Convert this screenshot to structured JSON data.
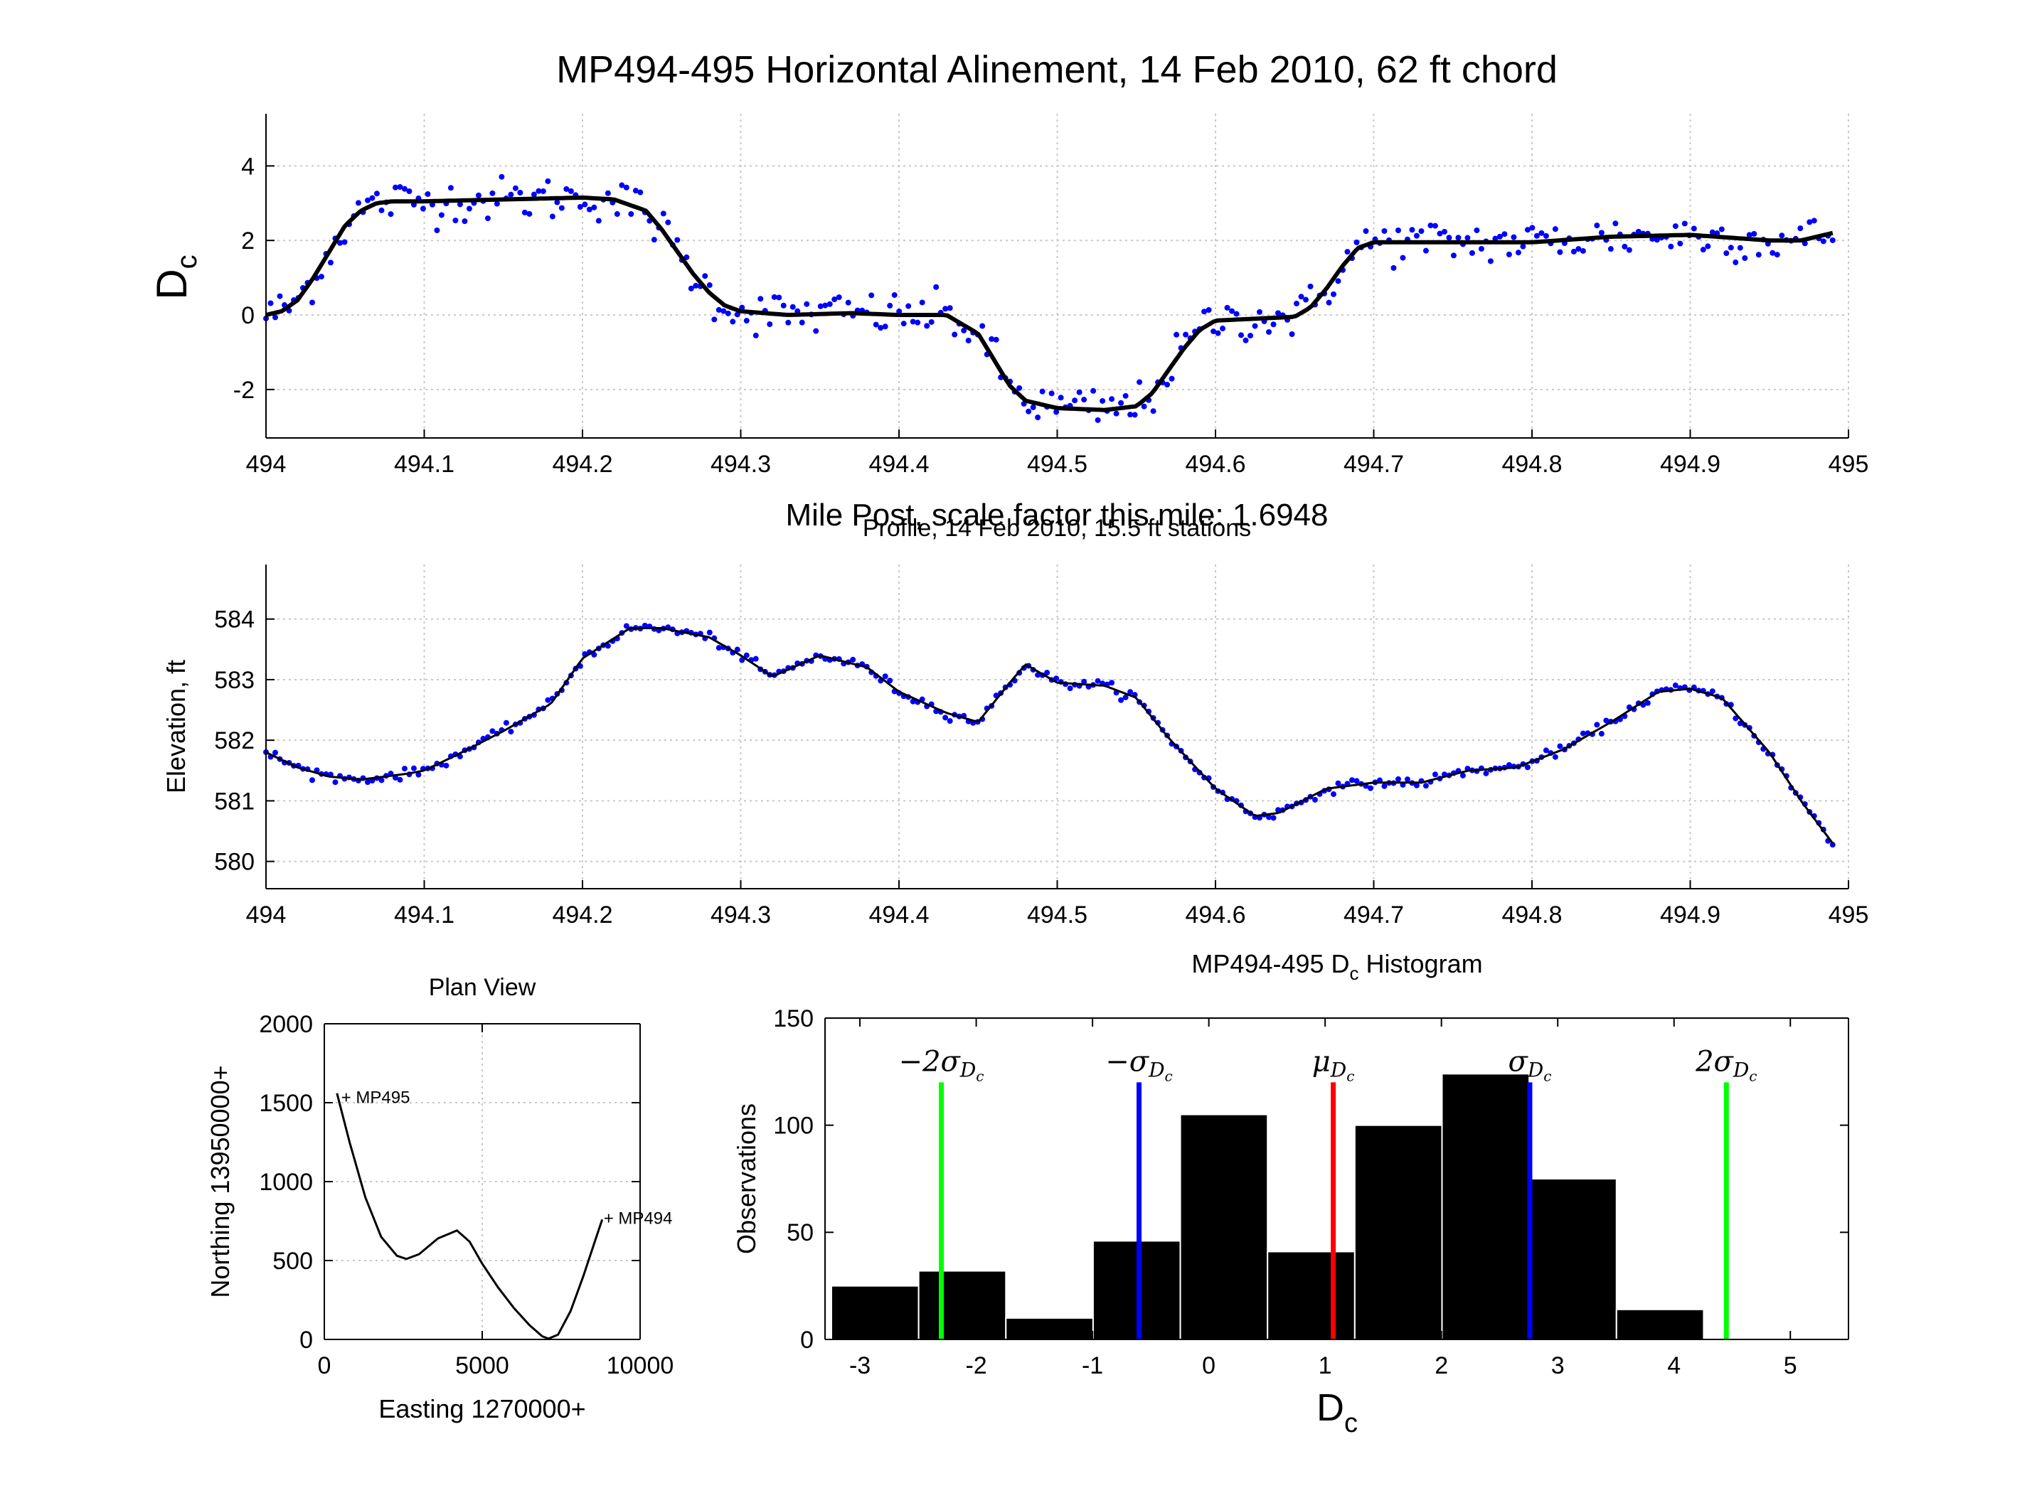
{
  "chart_data": [
    {
      "type": "scatter",
      "title": "MP494-495 Horizontal Alinement, 14 Feb 2010, 62 ft chord",
      "xlabel": "Mile Post, scale factor this mile: 1.6948",
      "ylabel": "D",
      "ylabel_sub": "c",
      "xlim": [
        494,
        495
      ],
      "ylim": [
        -3.3,
        5.4
      ],
      "xticks": [
        "494",
        "494.1",
        "494.2",
        "494.3",
        "494.4",
        "494.5",
        "494.6",
        "494.7",
        "494.8",
        "494.9",
        "495"
      ],
      "yticks": [
        "-2",
        "0",
        "2",
        "4"
      ],
      "grid": true,
      "colors": {
        "points": "#0000ff",
        "line": "#000000"
      },
      "smoothed": {
        "x": [
          494.0,
          494.01,
          494.02,
          494.03,
          494.04,
          494.05,
          494.06,
          494.07,
          494.08,
          494.1,
          494.15,
          494.2,
          494.22,
          494.24,
          494.25,
          494.26,
          494.27,
          494.28,
          494.29,
          494.3,
          494.33,
          494.37,
          494.4,
          494.43,
          494.45,
          494.46,
          494.47,
          494.48,
          494.5,
          494.53,
          494.55,
          494.56,
          494.57,
          494.58,
          494.59,
          494.6,
          494.65,
          494.66,
          494.67,
          494.68,
          494.69,
          494.7,
          494.75,
          494.8,
          494.85,
          494.9,
          494.95,
          494.97,
          494.99
        ],
        "y": [
          0.0,
          0.1,
          0.4,
          1.0,
          1.7,
          2.4,
          2.8,
          3.0,
          3.05,
          3.05,
          3.1,
          3.15,
          3.1,
          2.8,
          2.3,
          1.7,
          1.1,
          0.6,
          0.25,
          0.1,
          0.0,
          0.05,
          0.0,
          0.0,
          -0.5,
          -1.2,
          -1.9,
          -2.3,
          -2.5,
          -2.55,
          -2.45,
          -2.1,
          -1.5,
          -0.9,
          -0.4,
          -0.15,
          -0.05,
          0.2,
          0.7,
          1.3,
          1.8,
          1.95,
          1.95,
          1.95,
          2.1,
          2.15,
          2.0,
          2.0,
          2.2
        ]
      },
      "scatter_noise": 0.3,
      "point_count": 340
    },
    {
      "type": "scatter",
      "title": "Profile, 14 Feb 2010, 15.5 ft stations",
      "xlabel": "",
      "ylabel": "Elevation, ft",
      "xlim": [
        494,
        495
      ],
      "ylim": [
        579.55,
        584.9
      ],
      "xticks": [
        "494",
        "494.1",
        "494.2",
        "494.3",
        "494.4",
        "494.5",
        "494.6",
        "494.7",
        "494.8",
        "494.9",
        "495"
      ],
      "yticks": [
        "580",
        "581",
        "582",
        "583",
        "584"
      ],
      "grid": true,
      "colors": {
        "points": "#0000ff",
        "line": "#000000"
      },
      "profile": {
        "x": [
          494.0,
          494.02,
          494.04,
          494.06,
          494.09,
          494.1,
          494.12,
          494.15,
          494.18,
          494.2,
          494.23,
          494.25,
          494.28,
          494.3,
          494.32,
          494.35,
          494.38,
          494.4,
          494.43,
          494.45,
          494.47,
          494.48,
          494.5,
          494.53,
          494.55,
          494.57,
          494.6,
          494.625,
          494.64,
          494.67,
          494.7,
          494.73,
          494.76,
          494.79,
          494.82,
          494.85,
          494.88,
          494.9,
          494.92,
          494.95,
          494.97,
          494.99
        ],
        "y": [
          581.8,
          581.55,
          581.4,
          581.35,
          581.45,
          581.5,
          581.75,
          582.15,
          582.6,
          583.35,
          583.85,
          583.85,
          583.7,
          583.4,
          583.05,
          583.4,
          583.2,
          582.8,
          582.45,
          582.3,
          582.95,
          583.25,
          582.95,
          582.9,
          582.7,
          582.05,
          581.2,
          580.75,
          580.8,
          581.2,
          581.3,
          581.3,
          581.5,
          581.55,
          581.85,
          582.3,
          582.8,
          582.85,
          582.7,
          581.8,
          581.0,
          580.3
        ]
      },
      "scatter_noise": 0.04,
      "point_count": 340
    },
    {
      "type": "line",
      "title": "Plan View",
      "xlabel": "Easting 1270000+",
      "ylabel": "Northing 13950000+",
      "xlim": [
        0,
        10000
      ],
      "ylim": [
        0,
        2000
      ],
      "xticks": [
        "0",
        "5000",
        "10000"
      ],
      "yticks": [
        "0",
        "500",
        "1000",
        "1500",
        "2000"
      ],
      "grid": true,
      "annotations": [
        "MP495",
        "MP494"
      ],
      "track": {
        "x": [
          400,
          800,
          1300,
          1800,
          2300,
          2600,
          3000,
          3600,
          4200,
          4600,
          5000,
          5500,
          6000,
          6500,
          6900,
          7100,
          7400,
          7800,
          8200,
          8600,
          8800
        ],
        "y": [
          1560,
          1250,
          900,
          650,
          530,
          510,
          540,
          640,
          690,
          620,
          480,
          330,
          200,
          90,
          20,
          5,
          30,
          180,
          400,
          640,
          760
        ]
      }
    },
    {
      "type": "bar",
      "title": "MP494-495 D",
      "title_sub": "c",
      "title_suffix": " Histogram",
      "xlabel": "D",
      "xlabel_sub": "c",
      "ylabel": "Observations",
      "xlim": [
        -3.3,
        5.5
      ],
      "ylim": [
        0,
        150
      ],
      "xticks": [
        "-3",
        "-2",
        "-1",
        "0",
        "1",
        "2",
        "3",
        "4",
        "5"
      ],
      "yticks": [
        "0",
        "50",
        "100",
        "150"
      ],
      "bins": {
        "centers": [
          -2.87,
          -2.12,
          -1.37,
          -0.62,
          0.13,
          0.88,
          1.63,
          2.38,
          3.13,
          3.88
        ],
        "width": 0.75,
        "values": [
          25,
          32,
          10,
          46,
          105,
          41,
          100,
          124,
          75,
          14
        ]
      },
      "steps": [
        {
          "x": 2.13,
          "y": 124
        },
        {
          "x": 2.45,
          "y": 120
        }
      ],
      "markers": [
        {
          "label": "−2σ",
          "sub": "D",
          "subsub": "c",
          "x": -2.3,
          "color": "#00ff00"
        },
        {
          "label": "−σ",
          "sub": "D",
          "subsub": "c",
          "x": -0.6,
          "color": "#0000ff"
        },
        {
          "label": "μ",
          "sub": "D",
          "subsub": "c",
          "x": 1.07,
          "color": "#ff0000"
        },
        {
          "label": "σ",
          "sub": "D",
          "subsub": "c",
          "x": 2.76,
          "color": "#0000ff"
        },
        {
          "label": "2σ",
          "sub": "D",
          "subsub": "c",
          "x": 4.45,
          "color": "#00ff00"
        }
      ],
      "marker_top": 120
    }
  ]
}
